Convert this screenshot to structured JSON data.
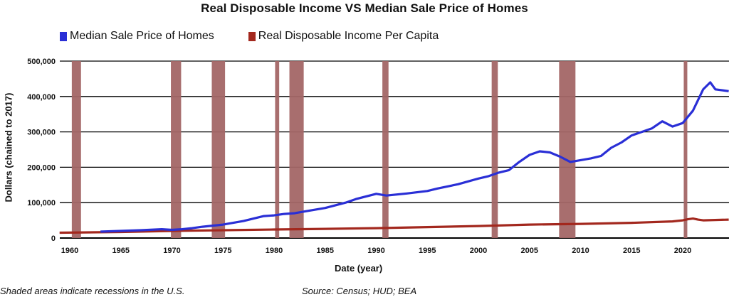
{
  "title": "Real Disposable Income VS Median Sale Price of Homes",
  "legend": [
    {
      "label": "Median Sale Price of Homes",
      "color": "#2a2fd6"
    },
    {
      "label": "Real Disposable Income Per Capita",
      "color": "#a3281e"
    }
  ],
  "axes": {
    "ylabel": "Dollars (chained to 2017)",
    "xlabel": "Date (year)",
    "yticks": [
      "0",
      "100,000",
      "200,000",
      "300,000",
      "400,000",
      "500,000"
    ],
    "xticks": [
      "1960",
      "1965",
      "1970",
      "1975",
      "1980",
      "1985",
      "1990",
      "1995",
      "2000",
      "2005",
      "2010",
      "2015",
      "2020"
    ]
  },
  "footnotes": {
    "left": "Shaded areas indicate recessions in the U.S.",
    "right": "Source: Census; HUD; BEA"
  },
  "colors": {
    "recession": "#a36666",
    "grid": "#000000"
  },
  "chart_data": {
    "type": "line",
    "title": "Real Disposable Income VS Median Sale Price of Homes",
    "xlabel": "Date (year)",
    "ylabel": "Dollars (chained to 2017)",
    "ylim": [
      0,
      500000
    ],
    "xlim": [
      1959,
      2024.5
    ],
    "grid": "horizontal",
    "legend_position": "top-left",
    "recessions": [
      [
        1960.2,
        1961.1
      ],
      [
        1969.9,
        1970.9
      ],
      [
        1973.9,
        1975.2
      ],
      [
        1980.1,
        1980.5
      ],
      [
        1981.5,
        1982.9
      ],
      [
        1990.6,
        1991.2
      ],
      [
        2001.3,
        2001.9
      ],
      [
        2007.9,
        2009.5
      ],
      [
        2020.1,
        2020.4
      ]
    ],
    "series": [
      {
        "name": "Median Sale Price of Homes",
        "color": "#2a2fd6",
        "x": [
          1963,
          1965,
          1967,
          1969,
          1970,
          1971,
          1972,
          1973,
          1975,
          1977,
          1979,
          1980,
          1981,
          1982,
          1983,
          1985,
          1987,
          1988,
          1990,
          1991,
          1993,
          1995,
          1996,
          1998,
          2000,
          2001,
          2002,
          2003,
          2004,
          2005,
          2006,
          2007,
          2008,
          2009,
          2010,
          2011,
          2012,
          2013,
          2014,
          2015,
          2016,
          2017,
          2018,
          2019,
          2020,
          2021,
          2022,
          2022.7,
          2023.2,
          2024.5
        ],
        "values": [
          18000,
          20000,
          22000,
          25000,
          23000,
          25000,
          28000,
          32000,
          38000,
          48000,
          62000,
          64000,
          68000,
          70000,
          75000,
          85000,
          100000,
          110000,
          125000,
          120000,
          126000,
          133000,
          140000,
          152000,
          168000,
          175000,
          185000,
          192000,
          215000,
          235000,
          245000,
          242000,
          230000,
          215000,
          220000,
          225000,
          232000,
          255000,
          270000,
          290000,
          300000,
          310000,
          330000,
          315000,
          325000,
          360000,
          420000,
          440000,
          420000,
          415000
        ]
      },
      {
        "name": "Real Disposable Income Per Capita",
        "color": "#a3281e",
        "x": [
          1959,
          1965,
          1970,
          1975,
          1980,
          1985,
          1990,
          1995,
          2000,
          2005,
          2010,
          2015,
          2019,
          2020,
          2020.5,
          2021,
          2021.5,
          2022,
          2024.5
        ],
        "values": [
          15000,
          17000,
          20000,
          22000,
          24000,
          26000,
          28000,
          31000,
          34000,
          38000,
          40000,
          43000,
          47000,
          50000,
          53000,
          55000,
          52000,
          50000,
          52000
        ]
      }
    ]
  }
}
